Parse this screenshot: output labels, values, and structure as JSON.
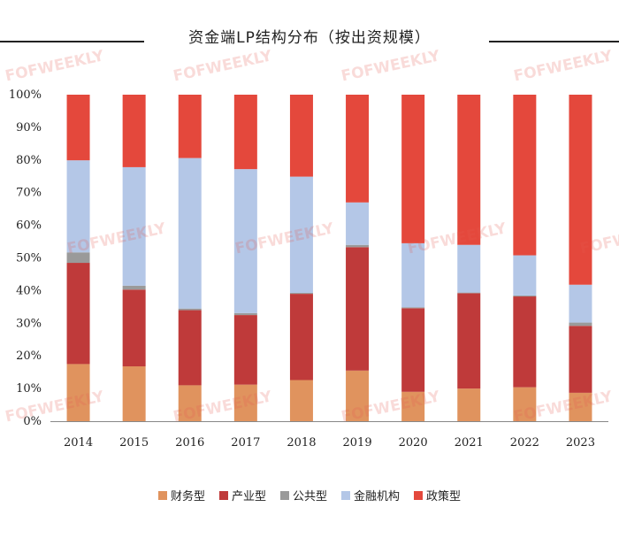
{
  "chart_data": {
    "type": "bar",
    "stacked": true,
    "percent": true,
    "title": "资金端LP结构分布（按出资规模）",
    "categories": [
      "2014",
      "2015",
      "2016",
      "2017",
      "2018",
      "2019",
      "2020",
      "2021",
      "2022",
      "2023"
    ],
    "series": [
      {
        "name": "财务型",
        "color": "#E0935E",
        "values": [
          17.5,
          16.8,
          11.0,
          11.2,
          12.6,
          15.5,
          9.0,
          10.0,
          10.4,
          8.7
        ]
      },
      {
        "name": "产业型",
        "color": "#BF3A3A",
        "values": [
          31.0,
          23.5,
          23.0,
          21.3,
          26.4,
          37.8,
          25.6,
          29.2,
          27.8,
          20.5
        ]
      },
      {
        "name": "公共型",
        "color": "#9A9A9A",
        "values": [
          3.2,
          1.2,
          0.5,
          0.6,
          0.3,
          0.7,
          0.3,
          0.2,
          0.3,
          1.0
        ]
      },
      {
        "name": "金融机构",
        "color": "#B4C7E7",
        "values": [
          28.2,
          36.3,
          46.1,
          44.1,
          35.6,
          13.0,
          19.6,
          14.6,
          12.3,
          11.6
        ]
      },
      {
        "name": "政策型",
        "color": "#E4483C",
        "values": [
          20.1,
          22.2,
          19.4,
          22.8,
          25.1,
          33.0,
          45.5,
          46.0,
          49.2,
          58.2
        ]
      }
    ],
    "ylim": [
      0,
      100
    ],
    "yticks": [
      "0%",
      "10%",
      "20%",
      "30%",
      "40%",
      "50%",
      "60%",
      "70%",
      "80%",
      "90%",
      "100%"
    ],
    "xlabel": "",
    "ylabel": "",
    "legend_position": "bottom"
  },
  "watermark": "FOFWEEKLY"
}
